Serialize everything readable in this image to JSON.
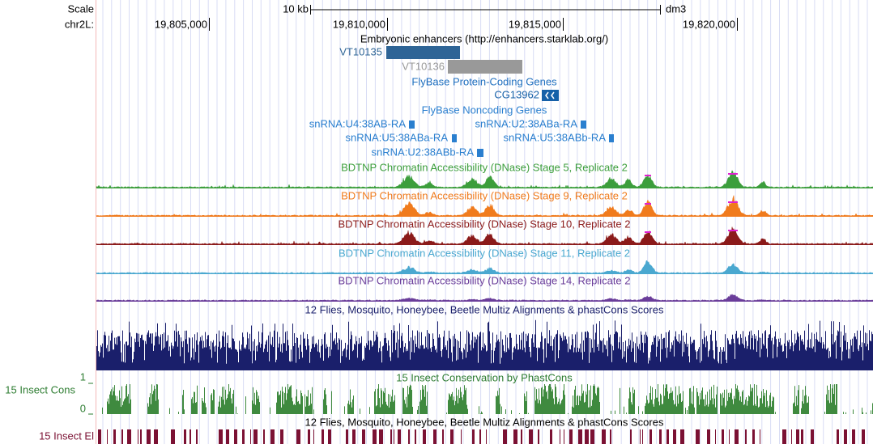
{
  "scale": {
    "label": "Scale",
    "length": "10 kb",
    "assembly": "dm3"
  },
  "position": {
    "chrom": "chr2L:",
    "ticks": [
      "19,805,000",
      "19,810,000",
      "19,815,000",
      "19,820,000"
    ]
  },
  "enhancers": {
    "title": "Embryonic enhancers (http://enhancers.starklab.org/)",
    "items": [
      "VT10135",
      "VT10136"
    ]
  },
  "coding_genes": {
    "title": "FlyBase Protein-Coding Genes",
    "items": [
      "CG13962"
    ]
  },
  "noncoding_genes": {
    "title": "FlyBase Noncoding Genes",
    "items": [
      "snRNA:U4:38AB-RA",
      "snRNA:U2:38ABa-RA",
      "snRNA:U5:38ABa-RA",
      "snRNA:U5:38ABb-RA",
      "snRNA:U2:38ABb-RA"
    ]
  },
  "dnase_tracks": [
    "BDTNP Chromatin Accessibility (DNase) Stage 5, Replicate 2",
    "BDTNP Chromatin Accessibility (DNase) Stage 9, Replicate 2",
    "BDTNP Chromatin Accessibility (DNase) Stage 10, Replicate 2",
    "BDTNP Chromatin Accessibility (DNase) Stage 11, Replicate 2",
    "BDTNP Chromatin Accessibility (DNase) Stage 14, Replicate 2"
  ],
  "multiz": {
    "title": "12 Flies, Mosquito, Honeybee, Beetle Multiz Alignments & phastCons Scores"
  },
  "phastcons": {
    "title": "15 Insect Conservation by PhastCons",
    "side_label": "15 Insect Cons",
    "axis_max": "1",
    "axis_min": "0"
  },
  "elements": {
    "title": "12 Flies, Mosquito, Honeybee, Beetle Multiz Alignments & phastCons Scores",
    "side_label": "15 Insect El"
  }
}
